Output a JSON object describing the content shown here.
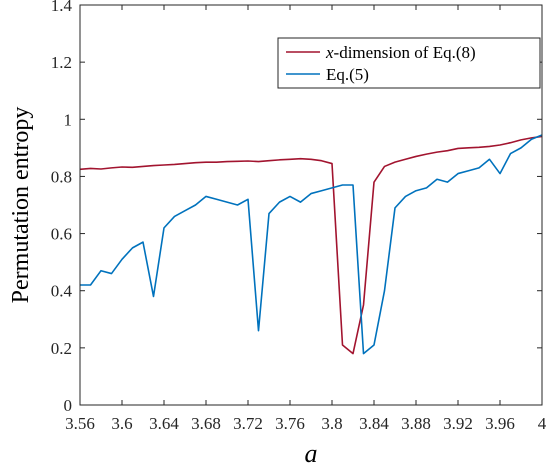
{
  "chart_data": {
    "type": "line",
    "xlabel": "a",
    "ylabel": "Permutation entropy",
    "xlim": [
      3.56,
      4.0
    ],
    "ylim": [
      0,
      1.4
    ],
    "x_ticks": [
      "3.56",
      "3.6",
      "3.64",
      "3.68",
      "3.72",
      "3.76",
      "3.8",
      "3.84",
      "3.88",
      "3.92",
      "3.96",
      "4"
    ],
    "y_ticks": [
      "0",
      "0.2",
      "0.4",
      "0.6",
      "0.8",
      "1",
      "1.2",
      "1.4"
    ],
    "legend_position": "top-right",
    "series": [
      {
        "name": "x-dimension of Eq.(8)",
        "legend_italic": "x",
        "legend_rest": "-dimension of Eq.(8)",
        "color": "#A2142F",
        "x": [
          3.56,
          3.57,
          3.58,
          3.59,
          3.6,
          3.61,
          3.62,
          3.63,
          3.64,
          3.65,
          3.66,
          3.67,
          3.68,
          3.69,
          3.7,
          3.71,
          3.72,
          3.73,
          3.74,
          3.75,
          3.76,
          3.77,
          3.78,
          3.79,
          3.8,
          3.81,
          3.82,
          3.83,
          3.84,
          3.85,
          3.86,
          3.87,
          3.88,
          3.89,
          3.9,
          3.91,
          3.92,
          3.93,
          3.94,
          3.95,
          3.96,
          3.97,
          3.98,
          3.99,
          4.0
        ],
        "y": [
          0.825,
          0.828,
          0.826,
          0.83,
          0.833,
          0.832,
          0.835,
          0.838,
          0.84,
          0.842,
          0.845,
          0.848,
          0.85,
          0.85,
          0.852,
          0.853,
          0.854,
          0.852,
          0.855,
          0.858,
          0.86,
          0.862,
          0.86,
          0.855,
          0.845,
          0.21,
          0.18,
          0.35,
          0.78,
          0.835,
          0.85,
          0.86,
          0.87,
          0.878,
          0.885,
          0.89,
          0.898,
          0.9,
          0.902,
          0.905,
          0.91,
          0.918,
          0.928,
          0.935,
          0.94
        ]
      },
      {
        "name": "Eq.(5)",
        "color": "#0072BD",
        "x": [
          3.56,
          3.57,
          3.58,
          3.59,
          3.6,
          3.61,
          3.62,
          3.63,
          3.64,
          3.65,
          3.66,
          3.67,
          3.68,
          3.69,
          3.7,
          3.71,
          3.72,
          3.73,
          3.74,
          3.75,
          3.76,
          3.77,
          3.78,
          3.79,
          3.8,
          3.81,
          3.82,
          3.83,
          3.84,
          3.85,
          3.86,
          3.87,
          3.88,
          3.89,
          3.9,
          3.91,
          3.92,
          3.93,
          3.94,
          3.95,
          3.96,
          3.97,
          3.98,
          3.99,
          4.0
        ],
        "y": [
          0.42,
          0.42,
          0.47,
          0.46,
          0.51,
          0.55,
          0.57,
          0.38,
          0.62,
          0.66,
          0.68,
          0.7,
          0.73,
          0.72,
          0.71,
          0.7,
          0.72,
          0.26,
          0.67,
          0.71,
          0.73,
          0.71,
          0.74,
          0.75,
          0.76,
          0.77,
          0.77,
          0.18,
          0.21,
          0.4,
          0.69,
          0.73,
          0.75,
          0.76,
          0.79,
          0.78,
          0.81,
          0.82,
          0.83,
          0.86,
          0.81,
          0.88,
          0.9,
          0.93,
          0.945
        ]
      }
    ]
  }
}
